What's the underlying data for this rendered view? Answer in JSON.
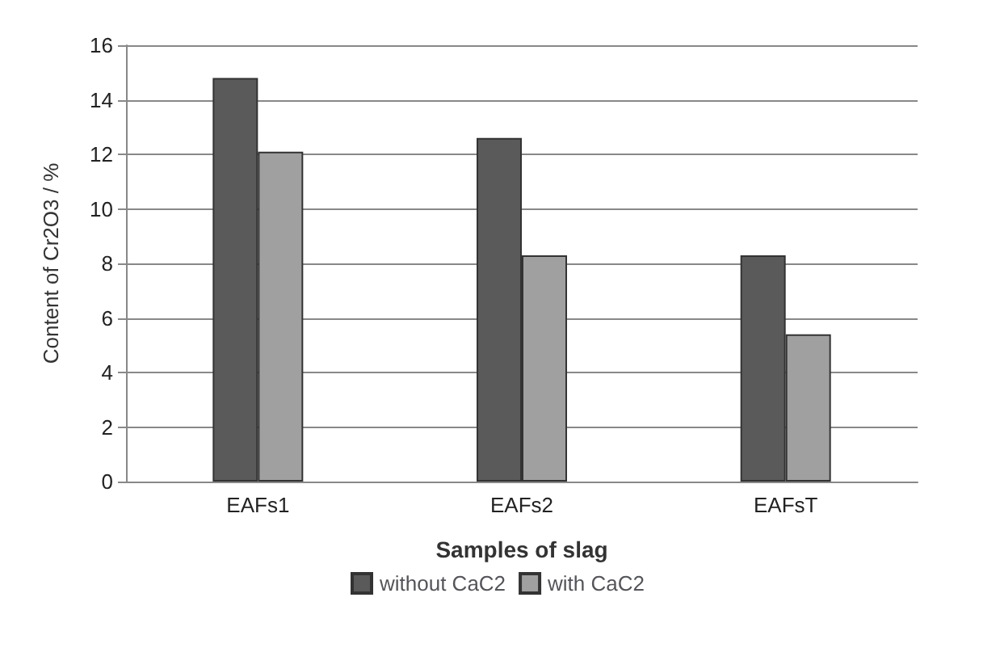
{
  "chart_data": {
    "type": "bar",
    "xlabel": "Samples of slag",
    "ylabel": "Content of Cr2O3 / %",
    "categories": [
      "EAFs1",
      "EAFs2",
      "EAFsT"
    ],
    "series": [
      {
        "name": "without CaC2",
        "color": "#5a5a5a",
        "values": [
          14.8,
          12.6,
          8.3
        ]
      },
      {
        "name": "with CaC2",
        "color": "#a0a0a0",
        "values": [
          12.1,
          8.3,
          5.4
        ]
      }
    ],
    "ylim": [
      0,
      16
    ],
    "yticks": [
      0,
      2,
      4,
      6,
      8,
      10,
      12,
      14,
      16
    ],
    "grid": "y",
    "legend": "bottom"
  }
}
